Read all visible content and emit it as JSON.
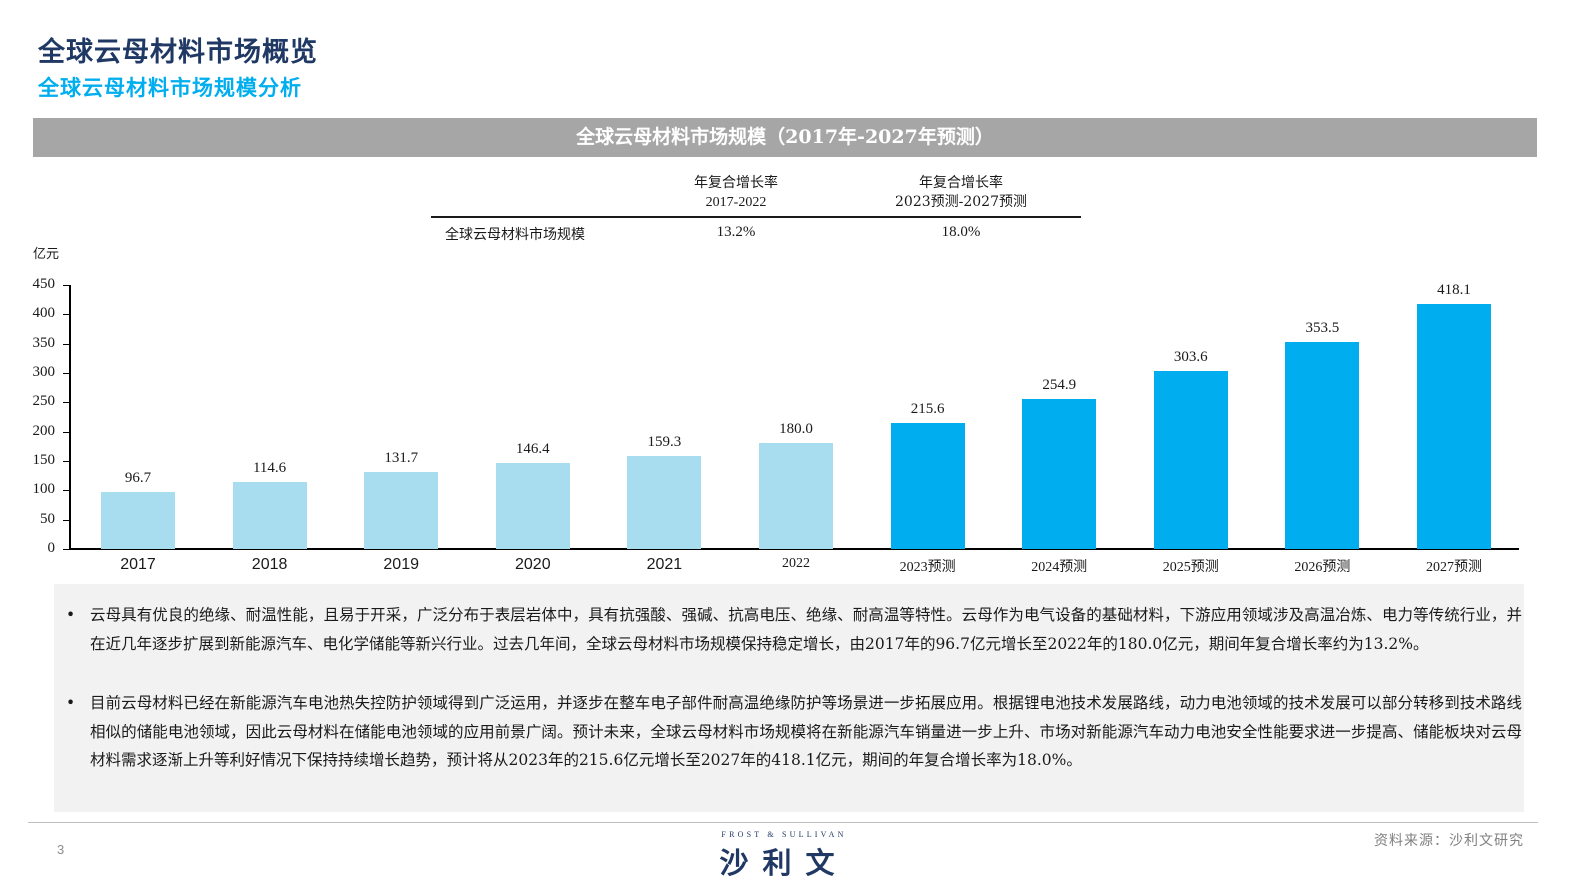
{
  "header": {
    "title": "全球云母材料市场概览",
    "subtitle": "全球云母材料市场规模分析"
  },
  "banner": {
    "title": "全球云母材料市场规模（2017年-2027年预测）"
  },
  "cagr_table": {
    "columns": [
      {
        "line1": "年复合增长率",
        "line2": "2017-2022"
      },
      {
        "line1": "年复合增长率",
        "line2": "2023预测-2027预测"
      }
    ],
    "rows": [
      {
        "label": "全球云母材料市场规模",
        "values": [
          "13.2%",
          "18.0%"
        ]
      }
    ]
  },
  "colors": {
    "historical_bar": "#a8ddf0",
    "forecast_bar": "#00aeef",
    "title": "#1f3864",
    "subtitle": "#00aeef",
    "banner": "#a6a6a6"
  },
  "chart_data": {
    "type": "bar",
    "title": "全球云母材料市场规模（2017年-2027年预测）",
    "xlabel": "",
    "ylabel": "亿元",
    "ylim": [
      0,
      450
    ],
    "yticks": [
      "0",
      "50",
      "100",
      "150",
      "200",
      "250",
      "300",
      "350",
      "400",
      "450"
    ],
    "grid": false,
    "legend": null,
    "categories": [
      "2017",
      "2018",
      "2019",
      "2020",
      "2021",
      "2022",
      "2023预测",
      "2024预测",
      "2025预测",
      "2026预测",
      "2027预测"
    ],
    "values": [
      96.7,
      114.6,
      131.7,
      146.4,
      159.3,
      180.0,
      215.6,
      254.9,
      303.6,
      353.5,
      418.1
    ],
    "value_labels": [
      "96.7",
      "114.6",
      "131.7",
      "146.4",
      "159.3",
      "180.0",
      "215.6",
      "254.9",
      "303.6",
      "353.5",
      "418.1"
    ],
    "series_type": [
      "historical",
      "historical",
      "historical",
      "historical",
      "historical",
      "historical",
      "forecast",
      "forecast",
      "forecast",
      "forecast",
      "forecast"
    ],
    "annotations": [
      {
        "text": "年复合增长率 2017-2022",
        "value": "13.2%"
      },
      {
        "text": "年复合增长率 2023预测-2027预测",
        "value": "18.0%"
      }
    ]
  },
  "notes": [
    {
      "bullet": "•",
      "text": "云母具有优良的绝缘、耐温性能，且易于开采，广泛分布于表层岩体中，具有抗强酸、强碱、抗高电压、绝缘、耐高温等特性。云母作为电气设备的基础材料，下游应用领域涉及高温冶炼、电力等传统行业，并在近几年逐步扩展到新能源汽车、电化学储能等新兴行业。过去几年间，全球云母材料市场规模保持稳定增长，由2017年的96.7亿元增长至2022年的180.0亿元，期间年复合增长率约为13.2%。"
    },
    {
      "bullet": "•",
      "text": "目前云母材料已经在新能源汽车电池热失控防护领域得到广泛运用，并逐步在整车电子部件耐高温绝缘防护等场景进一步拓展应用。根据锂电池技术发展路线，动力电池领域的技术发展可以部分转移到技术路线相似的储能电池领域，因此云母材料在储能电池领域的应用前景广阔。预计未来，全球云母材料市场规模将在新能源汽车销量进一步上升、市场对新能源汽车动力电池安全性能要求进一步提高、储能板块对云母材料需求逐渐上升等利好情况下保持持续增长趋势，预计将从2023年的215.6亿元增长至2027年的418.1亿元，期间的年复合增长率为18.0%。"
    }
  ],
  "footer": {
    "page_number": "3",
    "logo_en": "FROST & SULLIVAN",
    "logo_cn": "沙利文",
    "source": "资料来源：沙利文研究"
  }
}
